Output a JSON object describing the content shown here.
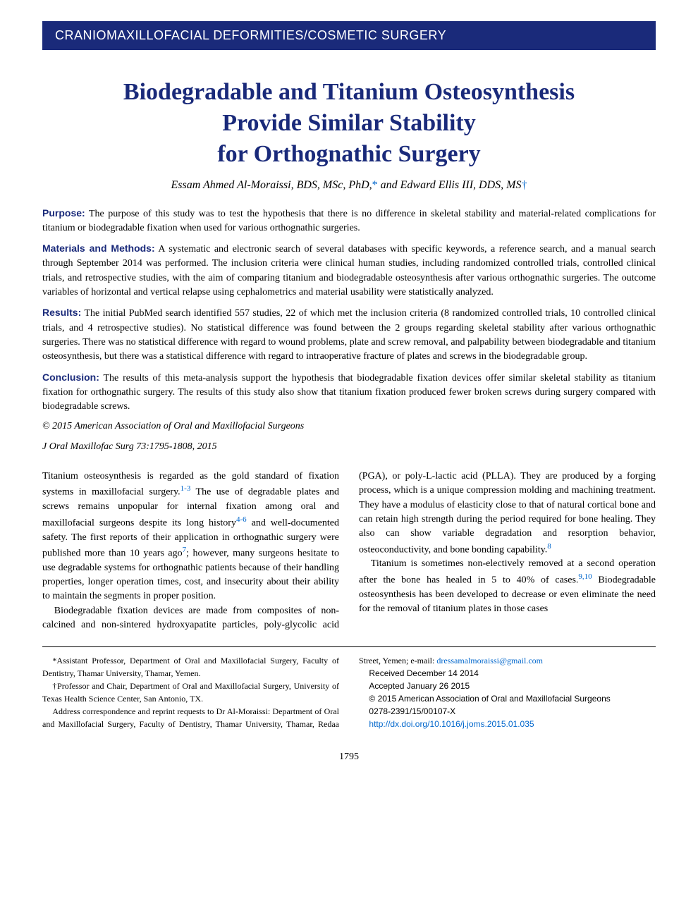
{
  "banner": "CRANIOMAXILLOFACIAL DEFORMITIES/COSMETIC SURGERY",
  "title_lines": [
    "Biodegradable and Titanium Osteosynthesis",
    "Provide Similar Stability",
    "for Orthognathic Surgery"
  ],
  "authors": {
    "a1_name": "Essam Ahmed Al-Moraissi, BDS, MSc, PhD,",
    "a1_mark": "*",
    "joiner": " and ",
    "a2_name": "Edward Ellis III, DDS, MS",
    "a2_mark": "†"
  },
  "abstract": {
    "purpose_label": "Purpose:",
    "purpose": "The purpose of this study was to test the hypothesis that there is no difference in skeletal stability and material-related complications for titanium or biodegradable fixation when used for various orthognathic surgeries.",
    "methods_label": "Materials and Methods:",
    "methods": "A systematic and electronic search of several databases with specific keywords, a reference search, and a manual search through September 2014 was performed. The inclusion criteria were clinical human studies, including randomized controlled trials, controlled clinical trials, and retrospective studies, with the aim of comparing titanium and biodegradable osteosynthesis after various orthognathic surgeries. The outcome variables of horizontal and vertical relapse using cephalometrics and material usability were statistically analyzed.",
    "results_label": "Results:",
    "results": "The initial PubMed search identified 557 studies, 22 of which met the inclusion criteria (8 randomized controlled trials, 10 controlled clinical trials, and 4 retrospective studies). No statistical difference was found between the 2 groups regarding skeletal stability after various orthognathic surgeries. There was no statistical difference with regard to wound problems, plate and screw removal, and palpability between biodegradable and titanium osteosynthesis, but there was a statistical difference with regard to intraoperative fracture of plates and screws in the biodegradable group.",
    "conclusion_label": "Conclusion:",
    "conclusion": "The results of this meta-analysis support the hypothesis that biodegradable fixation devices offer similar skeletal stability as titanium fixation for orthognathic surgery. The results of this study also show that titanium fixation produced fewer broken screws during surgery compared with biodegradable screws.",
    "copyright": "© 2015 American Association of Oral and Maxillofacial Surgeons",
    "citation": "J Oral Maxillofac Surg 73:1795-1808, 2015"
  },
  "body": {
    "p1a": "Titanium osteosynthesis is regarded as the gold standard of fixation systems in maxillofacial surgery.",
    "c1": "1-3",
    "p1b": " The use of degradable plates and screws remains unpopular for internal fixation among oral and maxillofacial surgeons despite its long history",
    "c2": "4-6",
    "p1c": " and well-documented safety. The first reports of their application in orthognathic surgery were published more than 10 years ago",
    "c3": "7",
    "p1d": "; however, many surgeons hesitate to use degradable systems for orthognathic patients because of their handling properties, longer operation times, cost, and insecurity about their ability to maintain the segments in proper position.",
    "p2a": "Biodegradable fixation devices are made from composites of non-calcined and non-sintered hydroxyapatite particles, poly-glycolic acid (PGA), or poly-L-lactic acid (PLLA). They are produced by a forging process, which is a unique compression molding and machining treatment. They have a modulus of elasticity close to that of natural cortical bone and can retain high strength during the period required for bone healing. They also can show variable degradation and resorption behavior, osteoconductivity, and bone bonding capability.",
    "c4": "8",
    "p3a": "Titanium is sometimes non-electively removed at a second operation after the bone has healed in 5 to 40% of cases.",
    "c5": "9,10",
    "p3b": " Biodegradable osteosynthesis has been developed to decrease or even eliminate the need for the removal of titanium plates in those cases"
  },
  "footer": {
    "aff1": "*Assistant Professor, Department of Oral and Maxillofacial Surgery, Faculty of Dentistry, Thamar University, Thamar, Yemen.",
    "aff2": "†Professor and Chair, Department of Oral and Maxillofacial Surgery, University of Texas Health Science Center, San Antonio, TX.",
    "corr": "Address correspondence and reprint requests to Dr Al-Moraissi: Department of Oral and Maxillofacial Surgery, Faculty of Dentistry, Thamar University, Thamar, Redaa Street, Yemen; e-mail: ",
    "email": "dressamalmoraissi@gmail.com",
    "received": "Received December 14 2014",
    "accepted": "Accepted January 26 2015",
    "copy2": "© 2015 American Association of Oral and Maxillofacial Surgeons",
    "issn": "0278-2391/15/00107-X",
    "doi": "http://dx.doi.org/10.1016/j.joms.2015.01.035"
  },
  "page_number": "1795",
  "colors": {
    "banner_bg": "#1a2a7a",
    "heading": "#1a2a7a",
    "link": "#0066cc"
  }
}
